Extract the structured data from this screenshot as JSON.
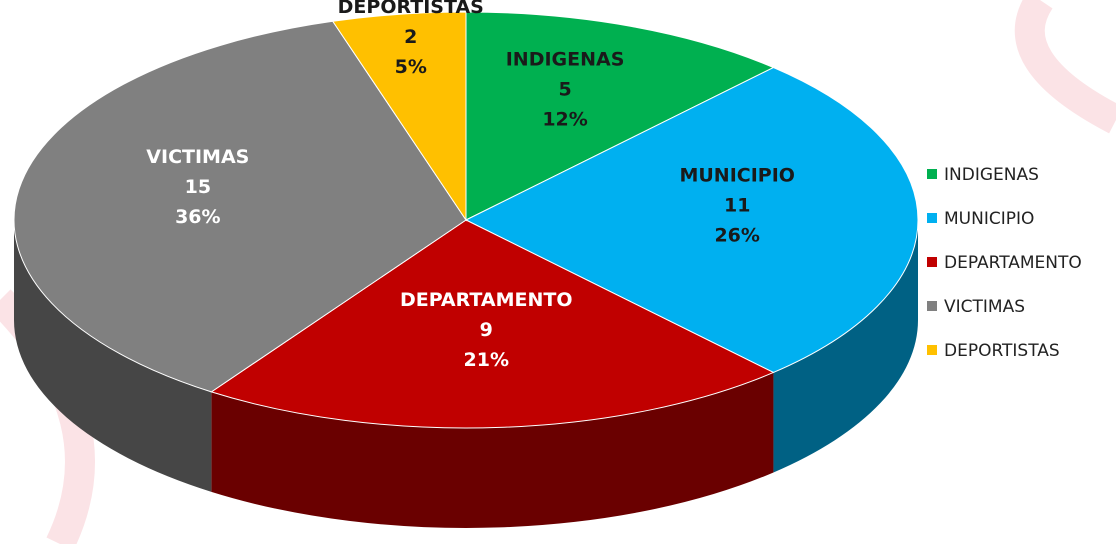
{
  "chart_data": {
    "type": "pie",
    "categories": [
      "INDIGENAS",
      "MUNICIPIO",
      "DEPARTAMENTO",
      "VICTIMAS",
      "DEPORTISTAS"
    ],
    "values": [
      5,
      11,
      9,
      15,
      2
    ],
    "percent_labels": [
      "12%",
      "26%",
      "21%",
      "36%",
      "5%"
    ],
    "colors": [
      "#00b050",
      "#00b0f0",
      "#c00000",
      "#808080",
      "#ffc000"
    ],
    "label_colors": [
      "#1a1a1a",
      "#1a1a1a",
      "#ffffff",
      "#ffffff",
      "#1a1a1a"
    ],
    "legend": "right"
  }
}
